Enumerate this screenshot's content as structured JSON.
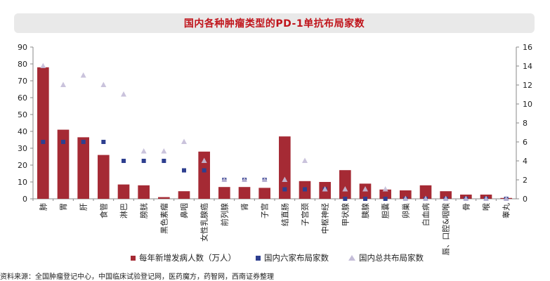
{
  "title": "国内各种肿瘤类型的PD-1单抗布局家数",
  "source": "资料来源：全国肿瘤登记中心，中国临床试验登记网，医药魔方，药智网，西南证券整理",
  "colors": {
    "bar": "#a52a34",
    "square": "#2e3f8f",
    "triangle": "#c4bdd8",
    "title": "#c0141b"
  },
  "chart_data": {
    "type": "bar",
    "categories": [
      "肺",
      "胃",
      "肝",
      "食管",
      "淋巴",
      "膀胱",
      "黑色素瘤",
      "鼻咽",
      "女性乳腺癌",
      "前列腺",
      "肾",
      "子宫",
      "结直肠",
      "子宫颈",
      "中枢神经",
      "甲状腺",
      "胰腺",
      "胆囊",
      "卵巢",
      "白血病",
      "唇、口腔&咽喉",
      "骨",
      "喉",
      "睾丸"
    ],
    "y_left_ticks": [
      "0",
      "10",
      "20",
      "30",
      "40",
      "50",
      "60",
      "70",
      "80",
      "90"
    ],
    "y_right_ticks": [
      "0",
      "2",
      "4",
      "6",
      "8",
      "10",
      "12",
      "14",
      "16"
    ],
    "ylim_left": [
      0,
      90
    ],
    "ylim_right": [
      0,
      16
    ],
    "series": [
      {
        "name": "每年新增发病人数（万人）",
        "type": "bar",
        "axis": "left",
        "values": [
          78,
          41,
          36.5,
          26,
          8.5,
          8,
          1,
          4.5,
          28,
          7,
          7,
          6.5,
          37,
          10.5,
          10,
          17,
          9,
          5.5,
          5,
          8,
          4.5,
          2.5,
          2.5,
          0.5
        ]
      },
      {
        "name": "国内六家布局家数",
        "type": "square",
        "axis": "right",
        "values": [
          6,
          6,
          6,
          6,
          4,
          4,
          4,
          3,
          3,
          2,
          2,
          2,
          1,
          1,
          1,
          0,
          0,
          0,
          0,
          0,
          0,
          0,
          0,
          0
        ]
      },
      {
        "name": "国内总共布局家数",
        "type": "triangle",
        "axis": "right",
        "values": [
          14,
          12,
          13,
          12,
          11,
          5,
          5,
          6,
          4,
          2,
          2,
          2,
          2,
          4,
          1,
          1,
          1,
          1,
          0,
          0,
          0,
          0,
          0,
          0
        ]
      }
    ],
    "legend_position": "bottom",
    "grid": false
  }
}
